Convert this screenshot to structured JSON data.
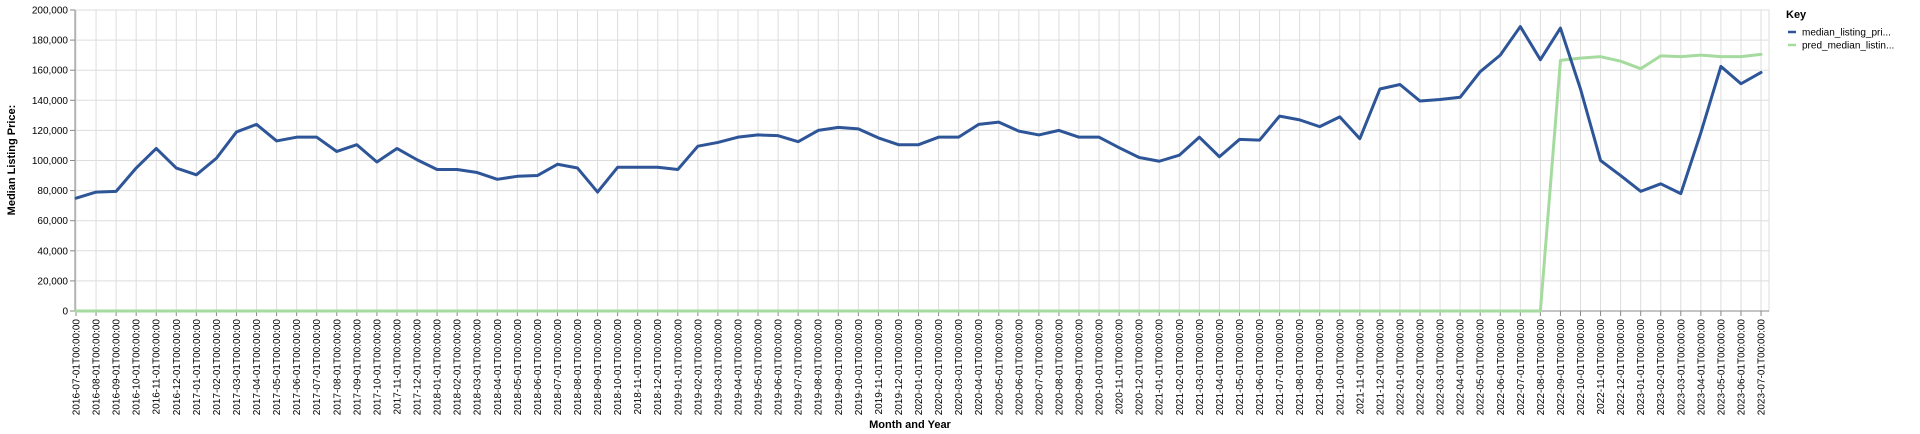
{
  "chart_data": {
    "type": "line",
    "xlabel": "Month and Year",
    "ylabel": "Median Listing Price:",
    "ylim": [
      0,
      200000
    ],
    "yticks": [
      "0",
      "20,000",
      "40,000",
      "60,000",
      "80,000",
      "100,000",
      "120,000",
      "140,000",
      "160,000",
      "180,000",
      "200,000"
    ],
    "grid": true,
    "legend": {
      "title": "Key",
      "placement": "right"
    },
    "x": [
      "2016-07-01T00:00:00",
      "2016-08-01T00:00:00",
      "2016-09-01T00:00:00",
      "2016-10-01T00:00:00",
      "2016-11-01T00:00:00",
      "2016-12-01T00:00:00",
      "2017-01-01T00:00:00",
      "2017-02-01T00:00:00",
      "2017-03-01T00:00:00",
      "2017-04-01T00:00:00",
      "2017-05-01T00:00:00",
      "2017-06-01T00:00:00",
      "2017-07-01T00:00:00",
      "2017-08-01T00:00:00",
      "2017-09-01T00:00:00",
      "2017-10-01T00:00:00",
      "2017-11-01T00:00:00",
      "2017-12-01T00:00:00",
      "2018-01-01T00:00:00",
      "2018-02-01T00:00:00",
      "2018-03-01T00:00:00",
      "2018-04-01T00:00:00",
      "2018-05-01T00:00:00",
      "2018-06-01T00:00:00",
      "2018-07-01T00:00:00",
      "2018-08-01T00:00:00",
      "2018-09-01T00:00:00",
      "2018-10-01T00:00:00",
      "2018-11-01T00:00:00",
      "2018-12-01T00:00:00",
      "2019-01-01T00:00:00",
      "2019-02-01T00:00:00",
      "2019-03-01T00:00:00",
      "2019-04-01T00:00:00",
      "2019-05-01T00:00:00",
      "2019-06-01T00:00:00",
      "2019-07-01T00:00:00",
      "2019-08-01T00:00:00",
      "2019-09-01T00:00:00",
      "2019-10-01T00:00:00",
      "2019-11-01T00:00:00",
      "2019-12-01T00:00:00",
      "2020-01-01T00:00:00",
      "2020-02-01T00:00:00",
      "2020-03-01T00:00:00",
      "2020-04-01T00:00:00",
      "2020-05-01T00:00:00",
      "2020-06-01T00:00:00",
      "2020-07-01T00:00:00",
      "2020-08-01T00:00:00",
      "2020-09-01T00:00:00",
      "2020-10-01T00:00:00",
      "2020-11-01T00:00:00",
      "2020-12-01T00:00:00",
      "2021-01-01T00:00:00",
      "2021-02-01T00:00:00",
      "2021-03-01T00:00:00",
      "2021-04-01T00:00:00",
      "2021-05-01T00:00:00",
      "2021-06-01T00:00:00",
      "2021-07-01T00:00:00",
      "2021-08-01T00:00:00",
      "2021-09-01T00:00:00",
      "2021-10-01T00:00:00",
      "2021-11-01T00:00:00",
      "2021-12-01T00:00:00",
      "2022-01-01T00:00:00",
      "2022-02-01T00:00:00",
      "2022-03-01T00:00:00",
      "2022-04-01T00:00:00",
      "2022-05-01T00:00:00",
      "2022-06-01T00:00:00",
      "2022-07-01T00:00:00",
      "2022-08-01T00:00:00",
      "2022-09-01T00:00:00",
      "2022-10-01T00:00:00",
      "2022-11-01T00:00:00",
      "2022-12-01T00:00:00",
      "2023-01-01T00:00:00",
      "2023-02-01T00:00:00",
      "2023-03-01T00:00:00",
      "2023-04-01T00:00:00",
      "2023-05-01T00:00:00",
      "2023-06-01T00:00:00",
      "2023-07-01T00:00:00"
    ],
    "series": [
      {
        "name": "median_listing_pri...",
        "color": "#2d5597",
        "values": [
          75000,
          79000,
          79500,
          95000,
          108000,
          95000,
          90500,
          101500,
          119000,
          124000,
          113000,
          115500,
          115500,
          106000,
          110500,
          99000,
          108000,
          100500,
          94000,
          94000,
          92000,
          87500,
          89500,
          90000,
          97500,
          95000,
          79000,
          95500,
          95500,
          95500,
          94000,
          109500,
          112000,
          115500,
          117000,
          116500,
          112500,
          120000,
          122000,
          121000,
          115000,
          110500,
          110500,
          115500,
          115500,
          124000,
          125500,
          119500,
          117000,
          120000,
          115500,
          115500,
          108500,
          102000,
          99500,
          103500,
          115500,
          102500,
          114000,
          113500,
          129500,
          127000,
          122500,
          129000,
          114500,
          147500,
          150500,
          139500,
          140500,
          142000,
          159000,
          170000,
          189000,
          167000,
          188000,
          147500,
          100000,
          90000,
          79500,
          84500,
          78000,
          118500,
          162500,
          151000,
          158500
        ]
      },
      {
        "name": "pred_median_listin...",
        "color": "#a6dba0",
        "values": [
          0,
          0,
          0,
          0,
          0,
          0,
          0,
          0,
          0,
          0,
          0,
          0,
          0,
          0,
          0,
          0,
          0,
          0,
          0,
          0,
          0,
          0,
          0,
          0,
          0,
          0,
          0,
          0,
          0,
          0,
          0,
          0,
          0,
          0,
          0,
          0,
          0,
          0,
          0,
          0,
          0,
          0,
          0,
          0,
          0,
          0,
          0,
          0,
          0,
          0,
          0,
          0,
          0,
          0,
          0,
          0,
          0,
          0,
          0,
          0,
          0,
          0,
          0,
          0,
          0,
          0,
          0,
          0,
          0,
          0,
          0,
          0,
          0,
          0,
          166500,
          168000,
          169000,
          166000,
          161000,
          169500,
          169000,
          170000,
          169000,
          169000,
          170500
        ]
      }
    ]
  }
}
